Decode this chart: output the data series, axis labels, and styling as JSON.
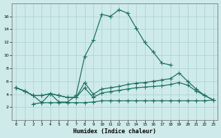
{
  "xlabel": "Humidex (Indice chaleur)",
  "bg_color": "#ceeaea",
  "grid_color": "#aacfcf",
  "line_color": "#1a6e5e",
  "x_values": [
    0,
    1,
    2,
    3,
    4,
    5,
    6,
    7,
    8,
    9,
    10,
    11,
    12,
    13,
    14,
    15,
    16,
    17,
    18,
    19,
    20,
    21,
    22,
    23
  ],
  "series1": [
    5.0,
    4.5,
    3.8,
    2.7,
    4.1,
    2.8,
    2.8,
    3.8,
    9.8,
    12.3,
    16.3,
    16.0,
    17.0,
    16.5,
    14.2,
    12.0,
    10.5,
    8.8,
    8.5,
    null,
    null,
    null,
    null,
    null
  ],
  "series2": [
    5.0,
    4.5,
    3.8,
    3.8,
    4.1,
    3.8,
    3.5,
    3.5,
    5.8,
    4.0,
    4.8,
    5.0,
    5.2,
    5.5,
    5.7,
    5.8,
    6.0,
    6.2,
    6.4,
    7.3,
    6.0,
    4.8,
    3.8,
    3.1
  ],
  "series3": [
    5.0,
    4.5,
    3.8,
    3.8,
    4.1,
    3.8,
    3.5,
    3.5,
    5.0,
    3.5,
    4.2,
    4.4,
    4.6,
    4.8,
    5.0,
    5.1,
    5.2,
    5.3,
    5.5,
    5.8,
    5.4,
    4.5,
    3.8,
    3.1
  ],
  "series4": [
    null,
    null,
    2.5,
    2.7,
    2.7,
    2.7,
    2.7,
    2.7,
    2.7,
    2.8,
    3.0,
    3.0,
    3.0,
    3.0,
    3.0,
    3.0,
    3.0,
    3.0,
    3.0,
    3.0,
    3.0,
    3.0,
    3.0,
    3.1
  ],
  "ylim": [
    0,
    18
  ],
  "yticks": [
    2,
    4,
    6,
    8,
    10,
    12,
    14,
    16
  ],
  "xticks": [
    0,
    1,
    2,
    3,
    4,
    5,
    6,
    7,
    8,
    9,
    10,
    11,
    12,
    13,
    14,
    15,
    16,
    17,
    18,
    19,
    20,
    21,
    22,
    23
  ]
}
